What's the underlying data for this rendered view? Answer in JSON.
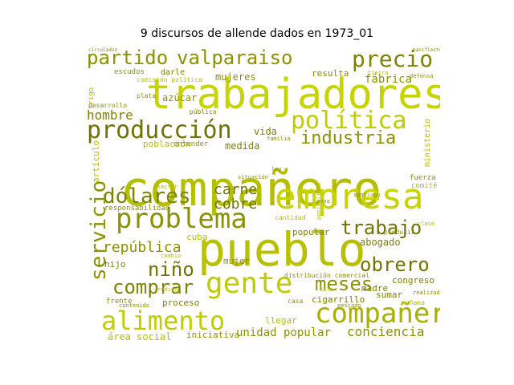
{
  "title": "9 discursos de allende dados en 1973_01",
  "words": [
    {
      "text": "compañero",
      "color": "#b5be00"
    },
    {
      "text": "trabajadores",
      "color": "#c8d400"
    },
    {
      "text": "pueblo",
      "color": "#b8c000"
    },
    {
      "text": "empresa",
      "color": "#c8d400"
    },
    {
      "text": "partido",
      "color": "#8c9200"
    },
    {
      "text": "valparaiso",
      "color": "#8c9200"
    },
    {
      "text": "precio",
      "color": "#7d8200"
    },
    {
      "text": "producción",
      "color": "#6f7400"
    },
    {
      "text": "política",
      "color": "#c0cc00"
    },
    {
      "text": "industria",
      "color": "#8c9200"
    },
    {
      "text": "problema",
      "color": "#8c9200"
    },
    {
      "text": "dólares",
      "color": "#7d8200"
    },
    {
      "text": "gente",
      "color": "#c0cc00"
    },
    {
      "text": "compañera",
      "color": "#a8b000"
    },
    {
      "text": "alimento",
      "color": "#c0cc00"
    },
    {
      "text": "servicio",
      "color": "#8c9200"
    },
    {
      "text": "trabajo",
      "color": "#6f7400"
    },
    {
      "text": "obrero",
      "color": "#6f7400"
    },
    {
      "text": "niño",
      "color": "#6f7400"
    },
    {
      "text": "comprar",
      "color": "#7d8200"
    },
    {
      "text": "meses",
      "color": "#8c9200"
    },
    {
      "text": "república",
      "color": "#8c9200"
    },
    {
      "text": "carne",
      "color": "#6f7400"
    },
    {
      "text": "cobre",
      "color": "#6f7400"
    },
    {
      "text": "hombre",
      "color": "#7d8200"
    },
    {
      "text": "conciencia",
      "color": "#8c9200"
    },
    {
      "text": "unidad popular",
      "color": "#8c9200"
    },
    {
      "text": "área social",
      "color": "#b5be00"
    },
    {
      "text": "fábrica",
      "color": "#8c9200"
    },
    {
      "text": "mujeres",
      "color": "#8c9200"
    },
    {
      "text": "resulta",
      "color": "#8c9200"
    },
    {
      "text": "azúcar",
      "color": "#8c9200"
    },
    {
      "text": "vida",
      "color": "#7d8200"
    },
    {
      "text": "medida",
      "color": "#7d8200"
    },
    {
      "text": "abogado",
      "color": "#7d8200"
    },
    {
      "text": "congreso",
      "color": "#7d8200"
    },
    {
      "text": "madre",
      "color": "#7d8200"
    },
    {
      "text": "sumar",
      "color": "#7d8200"
    },
    {
      "text": "cigarrillo",
      "color": "#7d8200"
    },
    {
      "text": "proceso",
      "color": "#7d8200"
    },
    {
      "text": "mujer",
      "color": "#8c9200"
    },
    {
      "text": "hijo",
      "color": "#7d8200"
    },
    {
      "text": "popular",
      "color": "#7d8200"
    },
    {
      "text": "cuba",
      "color": "#b5be00"
    },
    {
      "text": "llegar",
      "color": "#b5be00"
    },
    {
      "text": "iniciativa",
      "color": "#8c9200"
    },
    {
      "text": "frente",
      "color": "#8c9200"
    },
    {
      "text": "población",
      "color": "#b5be00"
    },
    {
      "text": "entender",
      "color": "#8c9200"
    },
    {
      "text": "responsabilidad",
      "color": "#8c9200"
    },
    {
      "text": "escudos",
      "color": "#8c9200"
    },
    {
      "text": "darle",
      "color": "#7d8200"
    },
    {
      "text": "artículo",
      "color": "#b5be00"
    },
    {
      "text": "trigo",
      "color": "#b5be00"
    },
    {
      "text": "ministerio",
      "color": "#b5be00"
    },
    {
      "text": "distribución comercial",
      "color": "#8c9200"
    },
    {
      "text": "público",
      "color": "#7d8200"
    },
    {
      "text": "mañana",
      "color": "#b5be00"
    },
    {
      "text": "cantidad",
      "color": "#b5be00"
    },
    {
      "text": "fuerza",
      "color": "#8c9200"
    },
    {
      "text": "comité",
      "color": "#b5be00"
    },
    {
      "text": "desarrollo",
      "color": "#8c9200"
    },
    {
      "text": "producir",
      "color": "#8c9200"
    },
    {
      "text": "casa",
      "color": "#8c9200"
    },
    {
      "text": "pescado",
      "color": "#8c9200"
    },
    {
      "text": "crédito",
      "color": "#b5be00"
    },
    {
      "text": "contenido",
      "color": "#8c9200"
    },
    {
      "text": "plata",
      "color": "#8c9200"
    },
    {
      "text": "familia",
      "color": "#8c9200"
    },
    {
      "text": "santiago",
      "color": "#8c9200"
    },
    {
      "text": "comisión política",
      "color": "#b5be00"
    },
    {
      "text": "circulados",
      "color": "#8c9200"
    },
    {
      "text": "kilo",
      "color": "#b5be00"
    },
    {
      "text": "zona",
      "color": "#8c9200"
    },
    {
      "text": "tierra",
      "color": "#b5be00"
    },
    {
      "text": "posibilidad",
      "color": "#b5be00"
    },
    {
      "text": "ley",
      "color": "#8c9200"
    },
    {
      "text": "realizado",
      "color": "#8c9200"
    },
    {
      "text": "sector",
      "color": "#b5be00"
    },
    {
      "text": "clase",
      "color": "#b5be00"
    },
    {
      "text": "defensa",
      "color": "#8c9200"
    },
    {
      "text": "situación",
      "color": "#8c9200"
    },
    {
      "text": "cambio",
      "color": "#b5be00"
    },
    {
      "text": "manifiesto",
      "color": "#8c9200"
    }
  ]
}
